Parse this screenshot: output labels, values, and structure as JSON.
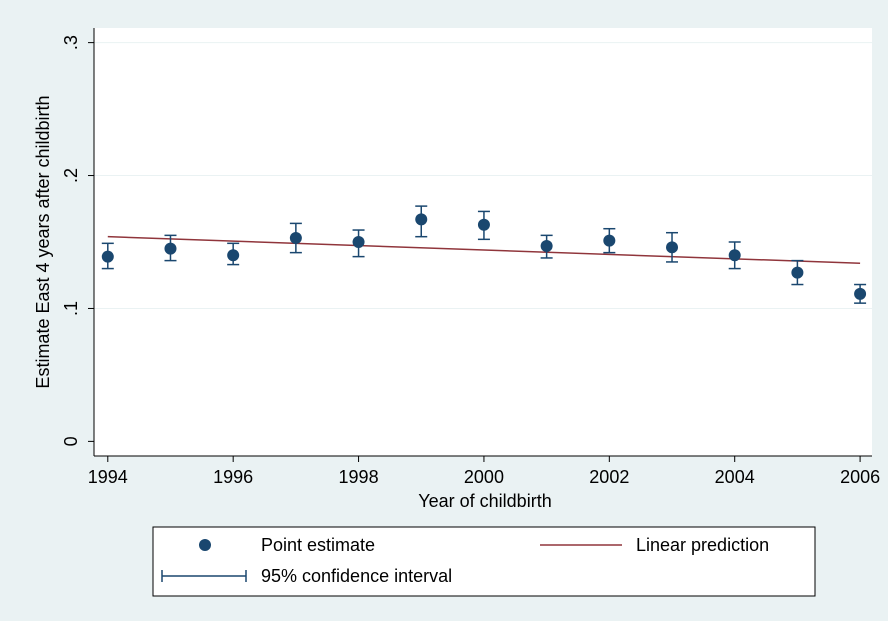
{
  "chart_data": {
    "type": "scatter",
    "x_label": "Year of childbirth",
    "y_label": "Estimate East 4 years after childbirth",
    "x": [
      1994,
      1995,
      1996,
      1997,
      1998,
      1999,
      2000,
      2001,
      2002,
      2003,
      2004,
      2005,
      2006
    ],
    "series": [
      {
        "name": "Point estimate",
        "color": "#1a476f",
        "values": [
          0.139,
          0.145,
          0.14,
          0.153,
          0.15,
          0.167,
          0.163,
          0.147,
          0.151,
          0.146,
          0.14,
          0.127,
          0.111
        ]
      },
      {
        "name": "95% confidence interval",
        "color": "#1a476f",
        "lower": [
          0.13,
          0.136,
          0.133,
          0.142,
          0.139,
          0.154,
          0.152,
          0.138,
          0.142,
          0.135,
          0.13,
          0.118,
          0.104
        ],
        "upper": [
          0.149,
          0.155,
          0.149,
          0.164,
          0.159,
          0.177,
          0.173,
          0.155,
          0.16,
          0.157,
          0.15,
          0.136,
          0.118
        ]
      },
      {
        "name": "Linear prediction",
        "color": "#90353b",
        "x": [
          1994,
          2006
        ],
        "values": [
          0.154,
          0.134
        ]
      }
    ],
    "xlim": [
      1993.78,
      2006.19
    ],
    "xticks": [
      1994,
      1996,
      1998,
      2000,
      2002,
      2004,
      2006
    ],
    "ylim": [
      -0.011,
      0.311
    ],
    "yticks": [
      0,
      {
        "value": 0.1,
        "label": ".1"
      },
      {
        "value": 0.2,
        "label": ".2"
      },
      {
        "value": 0.3,
        "label": ".3"
      }
    ],
    "grid": true
  }
}
